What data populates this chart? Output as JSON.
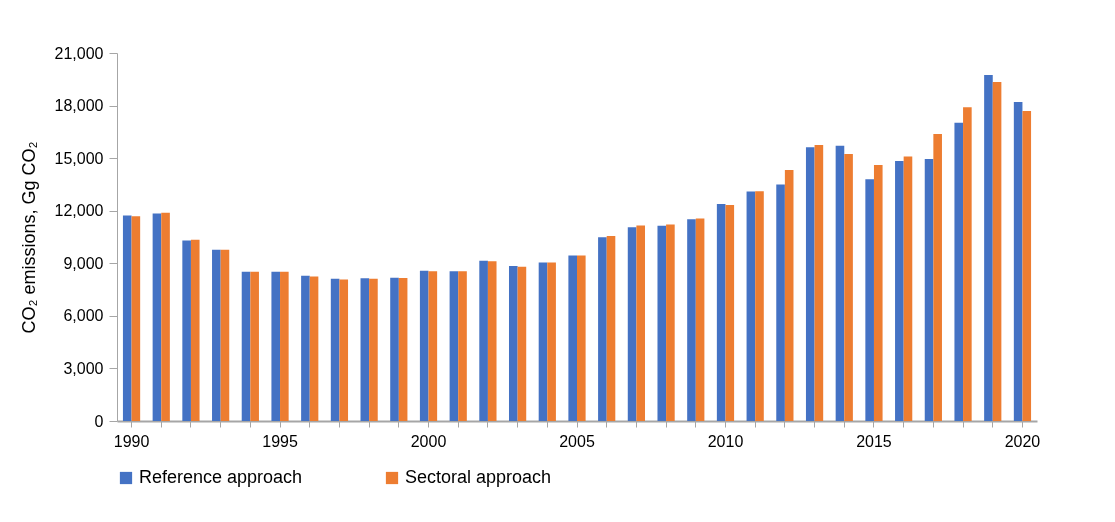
{
  "chart_data": {
    "type": "bar",
    "ylabel": "CO₂ emissions, Gg CO₂",
    "categories": [
      "1990",
      null,
      null,
      null,
      null,
      "1995",
      null,
      null,
      null,
      null,
      "2000",
      null,
      null,
      null,
      null,
      "2005",
      null,
      null,
      null,
      null,
      "2010",
      null,
      null,
      null,
      null,
      "2015",
      null,
      null,
      null,
      null,
      "2020"
    ],
    "series": [
      {
        "name": "Reference approach",
        "color": "#4472c4",
        "values": [
          11730,
          11840,
          10300,
          9770,
          8520,
          8520,
          8290,
          8120,
          8140,
          8180,
          8580,
          8540,
          9150,
          8840,
          9050,
          9450,
          10490,
          11060,
          11140,
          11520,
          12390,
          13090,
          13490,
          15620,
          15710,
          13800,
          14840,
          14950,
          17020,
          19750,
          18200
        ]
      },
      {
        "name": "Sectoral approach",
        "color": "#ed7d31",
        "values": [
          11690,
          11880,
          10340,
          9770,
          8520,
          8520,
          8240,
          8080,
          8120,
          8160,
          8540,
          8540,
          9110,
          8800,
          9050,
          9450,
          10550,
          11160,
          11210,
          11560,
          12320,
          13110,
          14330,
          15750,
          15240,
          14610,
          15100,
          16380,
          17910,
          19340,
          17690
        ]
      }
    ],
    "ylim": [
      0,
      21000
    ],
    "yticks": [
      0,
      {
        "value": 3000,
        "label": "3,000"
      },
      {
        "value": 6000,
        "label": "6,000"
      },
      {
        "value": 9000,
        "label": "9,000"
      },
      {
        "value": 12000,
        "label": "12,000"
      },
      {
        "value": 15000,
        "label": "15,000"
      },
      {
        "value": 18000,
        "label": "18,000"
      },
      {
        "value": 21000,
        "label": "21,000"
      }
    ],
    "grid": false,
    "legend": "bottom"
  }
}
